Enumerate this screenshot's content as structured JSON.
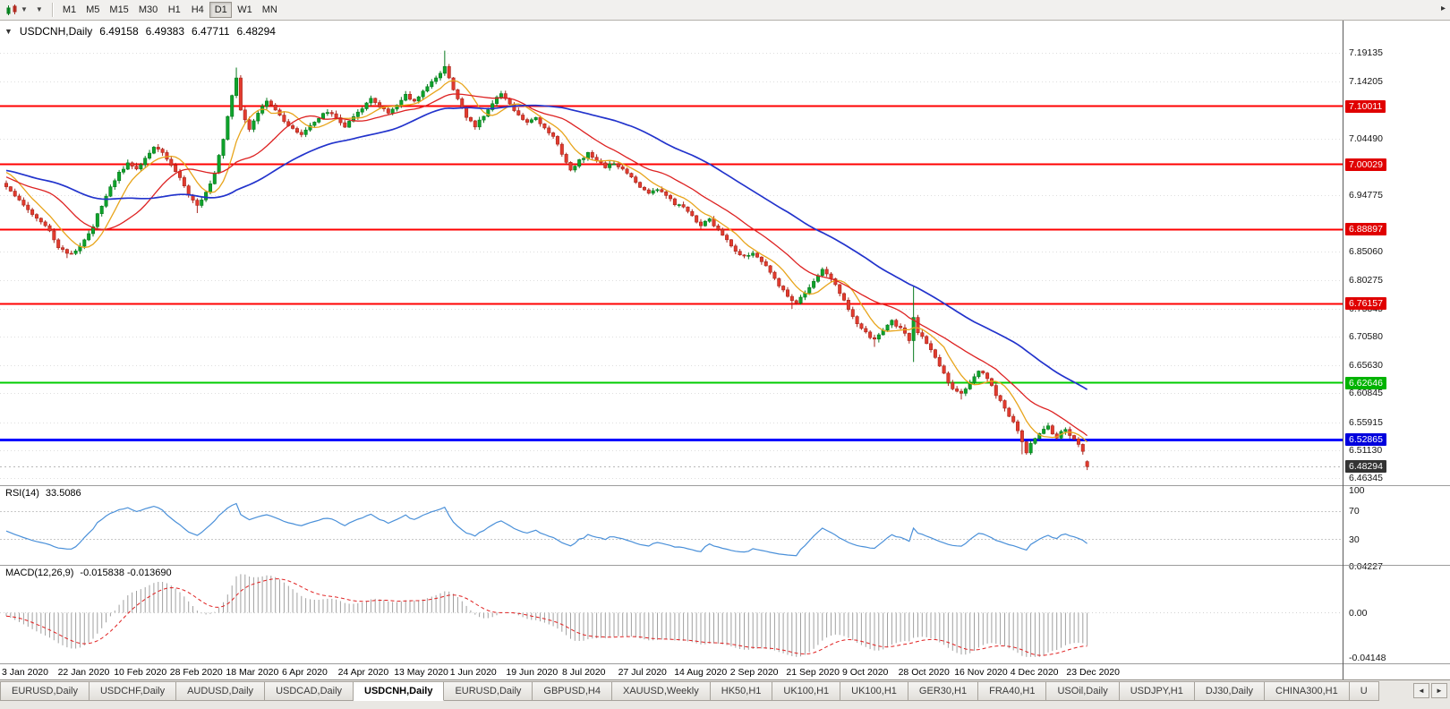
{
  "toolbar": {
    "timeframes": [
      {
        "label": "M1",
        "active": false
      },
      {
        "label": "M5",
        "active": false
      },
      {
        "label": "M15",
        "active": false
      },
      {
        "label": "M30",
        "active": false
      },
      {
        "label": "H1",
        "active": false
      },
      {
        "label": "H4",
        "active": false
      },
      {
        "label": "D1",
        "active": true
      },
      {
        "label": "W1",
        "active": false
      },
      {
        "label": "MN",
        "active": false
      }
    ],
    "overflow_arrow": "▸"
  },
  "chart_header": {
    "collapse_arrow": "▼",
    "symbol": "USDCNH,Daily",
    "open": "6.49158",
    "high": "6.49383",
    "low": "6.47711",
    "close": "6.48294"
  },
  "chart_data": {
    "type": "candlestick",
    "symbol": "USDCNH",
    "timeframe": "Daily",
    "ohlc_current": {
      "open": 6.49158,
      "high": 6.49383,
      "low": 6.47711,
      "close": 6.48294
    },
    "price_scale": {
      "top": 7.2465,
      "bottom": 6.4527
    },
    "bar_count": 250,
    "y_axis_labels": [
      "7.19135",
      "7.14205",
      "7.04490",
      "6.94775",
      "6.85060",
      "6.80275",
      "6.75345",
      "6.70580",
      "6.65630",
      "6.60845",
      "6.55915",
      "6.51130",
      "6.46345"
    ],
    "x_labels": [
      "3 Jan 2020",
      "22 Jan 2020",
      "10 Feb 2020",
      "28 Feb 2020",
      "18 Mar 2020",
      "6 Apr 2020",
      "24 Apr 2020",
      "13 May 2020",
      "1 Jun 2020",
      "19 Jun 2020",
      "8 Jul 2020",
      "27 Jul 2020",
      "14 Aug 2020",
      "2 Sep 2020",
      "21 Sep 2020",
      "9 Oct 2020",
      "28 Oct 2020",
      "16 Nov 2020",
      "4 Dec 2020",
      "23 Dec 2020"
    ],
    "hlines": [
      {
        "price": 7.10011,
        "label": "7.10011",
        "color": "#ff0000",
        "label_bg": "#e00000",
        "width": 2
      },
      {
        "price": 7.00029,
        "label": "7.00029",
        "color": "#ff0000",
        "label_bg": "#e00000",
        "width": 2
      },
      {
        "price": 6.88897,
        "label": "6.88897",
        "color": "#ff0000",
        "label_bg": "#e00000",
        "width": 2
      },
      {
        "price": 6.76157,
        "label": "6.76157",
        "color": "#ff0000",
        "label_bg": "#e00000",
        "width": 2
      },
      {
        "price": 6.62646,
        "label": "6.62646",
        "color": "#00cc00",
        "label_bg": "#00b300",
        "width": 2
      },
      {
        "price": 6.52865,
        "label": "6.52865",
        "color": "#0000ff",
        "label_bg": "#0000dd",
        "width": 3
      }
    ],
    "bid": {
      "price": 6.48294,
      "label": "6.48294",
      "label_bg": "#333333"
    },
    "candle_colors": {
      "up_fill": "#0ea32b",
      "up_stroke": "#077a1d",
      "down_fill": "#e23b2e",
      "down_stroke": "#a8271d"
    },
    "close_anchors": [
      [
        0,
        6.96
      ],
      [
        2,
        6.946
      ],
      [
        4,
        6.932
      ],
      [
        6,
        6.917
      ],
      [
        8,
        6.904
      ],
      [
        10,
        6.884
      ],
      [
        12,
        6.86
      ],
      [
        14,
        6.847
      ],
      [
        16,
        6.853
      ],
      [
        18,
        6.869
      ],
      [
        20,
        6.896
      ],
      [
        22,
        6.931
      ],
      [
        24,
        6.961
      ],
      [
        26,
        6.986
      ],
      [
        28,
        7.001
      ],
      [
        30,
        6.992
      ],
      [
        32,
        7.012
      ],
      [
        34,
        7.031
      ],
      [
        36,
        7.021
      ],
      [
        38,
        6.999
      ],
      [
        40,
        6.976
      ],
      [
        42,
        6.947
      ],
      [
        44,
        6.929
      ],
      [
        46,
        6.953
      ],
      [
        48,
        6.986
      ],
      [
        50,
        7.042
      ],
      [
        52,
        7.118
      ],
      [
        53,
        7.146
      ],
      [
        54,
        7.092
      ],
      [
        56,
        7.061
      ],
      [
        58,
        7.086
      ],
      [
        60,
        7.109
      ],
      [
        62,
        7.091
      ],
      [
        64,
        7.076
      ],
      [
        66,
        7.061
      ],
      [
        68,
        7.049
      ],
      [
        70,
        7.066
      ],
      [
        72,
        7.081
      ],
      [
        74,
        7.091
      ],
      [
        76,
        7.079
      ],
      [
        78,
        7.066
      ],
      [
        80,
        7.081
      ],
      [
        82,
        7.097
      ],
      [
        84,
        7.114
      ],
      [
        86,
        7.101
      ],
      [
        88,
        7.089
      ],
      [
        90,
        7.104
      ],
      [
        92,
        7.119
      ],
      [
        94,
        7.109
      ],
      [
        96,
        7.126
      ],
      [
        98,
        7.141
      ],
      [
        100,
        7.156
      ],
      [
        101,
        7.168
      ],
      [
        102,
        7.149
      ],
      [
        104,
        7.112
      ],
      [
        106,
        7.082
      ],
      [
        108,
        7.066
      ],
      [
        110,
        7.082
      ],
      [
        112,
        7.105
      ],
      [
        114,
        7.122
      ],
      [
        116,
        7.102
      ],
      [
        118,
        7.086
      ],
      [
        120,
        7.073
      ],
      [
        122,
        7.079
      ],
      [
        124,
        7.063
      ],
      [
        126,
        7.046
      ],
      [
        128,
        7.019
      ],
      [
        129,
        7.003
      ],
      [
        130,
        6.991
      ],
      [
        132,
        7.006
      ],
      [
        134,
        7.019
      ],
      [
        136,
        7.009
      ],
      [
        138,
        6.996
      ],
      [
        140,
        7.001
      ],
      [
        142,
        6.993
      ],
      [
        144,
        6.979
      ],
      [
        146,
        6.963
      ],
      [
        148,
        6.951
      ],
      [
        150,
        6.959
      ],
      [
        152,
        6.946
      ],
      [
        154,
        6.933
      ],
      [
        156,
        6.926
      ],
      [
        158,
        6.911
      ],
      [
        160,
        6.896
      ],
      [
        162,
        6.906
      ],
      [
        164,
        6.889
      ],
      [
        166,
        6.871
      ],
      [
        168,
        6.853
      ],
      [
        170,
        6.841
      ],
      [
        172,
        6.849
      ],
      [
        174,
        6.833
      ],
      [
        176,
        6.816
      ],
      [
        178,
        6.793
      ],
      [
        180,
        6.773
      ],
      [
        182,
        6.763
      ],
      [
        184,
        6.779
      ],
      [
        186,
        6.801
      ],
      [
        188,
        6.819
      ],
      [
        190,
        6.806
      ],
      [
        192,
        6.779
      ],
      [
        194,
        6.753
      ],
      [
        196,
        6.729
      ],
      [
        198,
        6.713
      ],
      [
        200,
        6.699
      ],
      [
        202,
        6.716
      ],
      [
        204,
        6.731
      ],
      [
        206,
        6.719
      ],
      [
        208,
        6.701
      ],
      [
        209,
        6.738
      ],
      [
        210,
        6.712
      ],
      [
        212,
        6.696
      ],
      [
        214,
        6.669
      ],
      [
        216,
        6.641
      ],
      [
        218,
        6.616
      ],
      [
        220,
        6.606
      ],
      [
        222,
        6.629
      ],
      [
        224,
        6.649
      ],
      [
        226,
        6.633
      ],
      [
        228,
        6.607
      ],
      [
        230,
        6.584
      ],
      [
        232,
        6.558
      ],
      [
        234,
        6.527
      ],
      [
        235,
        6.509
      ],
      [
        236,
        6.523
      ],
      [
        238,
        6.541
      ],
      [
        240,
        6.552
      ],
      [
        241,
        6.541
      ],
      [
        242,
        6.531
      ],
      [
        243,
        6.543
      ],
      [
        244,
        6.549
      ],
      [
        245,
        6.537
      ],
      [
        246,
        6.529
      ],
      [
        247,
        6.521
      ],
      [
        248,
        6.509
      ],
      [
        249,
        6.48294
      ]
    ],
    "candle_overrides": {
      "14": {
        "l": 6.84
      },
      "44": {
        "l": 6.917
      },
      "53": {
        "h": 7.166
      },
      "101": {
        "h": 7.195
      },
      "181": {
        "l": 6.753
      },
      "200": {
        "l": 6.688
      },
      "209": {
        "h": 6.792,
        "l": 6.662
      },
      "220": {
        "l": 6.598
      },
      "234": {
        "l": 6.504
      },
      "249": {
        "o": 6.49158,
        "h": 6.49383,
        "l": 6.47711,
        "c": 6.48294
      }
    },
    "moving_averages": [
      {
        "period": 8,
        "color": "#e8a51c",
        "width": 1.3
      },
      {
        "period": 20,
        "color": "#dd2222",
        "width": 1.3
      },
      {
        "period": 50,
        "color": "#2233cc",
        "width": 1.7
      }
    ],
    "indicators": {
      "rsi": {
        "title": "RSI(14)",
        "value": "33.5086",
        "color": "#4a90d9",
        "levels": [
          70,
          30
        ],
        "scale_labels": [
          {
            "text": "100",
            "value": 100
          },
          {
            "text": "70",
            "value": 70
          },
          {
            "text": "30",
            "value": 30
          }
        ]
      },
      "macd": {
        "title": "MACD(12,26,9)",
        "values": "-0.015838 -0.013690",
        "histogram_color": "#a0a0a0",
        "signal_color": "#e02020",
        "scale_labels": [
          {
            "text": "0.04227",
            "value": 0.04227
          },
          {
            "text": "0.00",
            "value": 0
          },
          {
            "text": "-0.04148",
            "value": -0.04148
          }
        ]
      }
    }
  },
  "tabbar": {
    "left_arrow": "◄",
    "right_arrow": "►",
    "tabs": [
      {
        "label": "EURUSD,Daily",
        "active": false
      },
      {
        "label": "USDCHF,Daily",
        "active": false
      },
      {
        "label": "AUDUSD,Daily",
        "active": false
      },
      {
        "label": "USDCAD,Daily",
        "active": false
      },
      {
        "label": "USDCNH,Daily",
        "active": true
      },
      {
        "label": "EURUSD,Daily",
        "active": false
      },
      {
        "label": "GBPUSD,H4",
        "active": false
      },
      {
        "label": "XAUUSD,Weekly",
        "active": false
      },
      {
        "label": "HK50,H1",
        "active": false
      },
      {
        "label": "UK100,H1",
        "active": false
      },
      {
        "label": "UK100,H1",
        "active": false
      },
      {
        "label": "GER30,H1",
        "active": false
      },
      {
        "label": "FRA40,H1",
        "active": false
      },
      {
        "label": "USOil,Daily",
        "active": false
      },
      {
        "label": "USDJPY,H1",
        "active": false
      },
      {
        "label": "DJ30,Daily",
        "active": false
      },
      {
        "label": "CHINA300,H1",
        "active": false
      },
      {
        "label": "U",
        "active": false
      }
    ]
  }
}
